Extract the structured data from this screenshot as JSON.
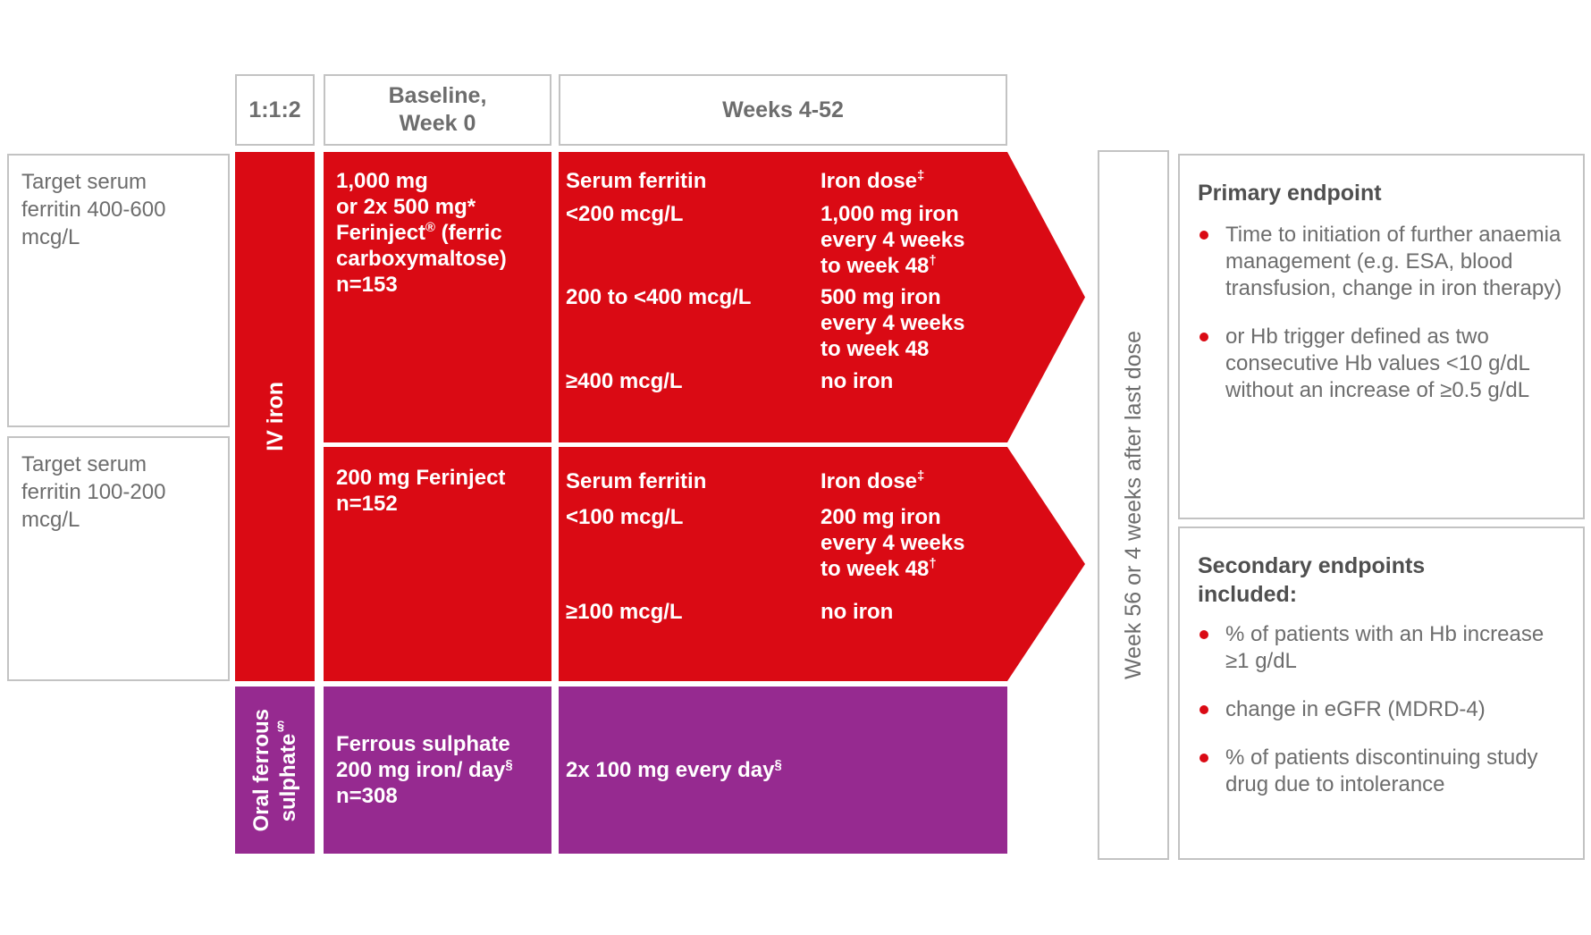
{
  "colors": {
    "red": "#da0a14",
    "purple": "#962a90",
    "border": "#c3c3c3",
    "gray": "#6d6d6d",
    "dark": "#4f4f4f",
    "white": "#ffffff"
  },
  "header": {
    "ratio": "1:1:2",
    "baseline": [
      "Baseline,",
      "Week 0"
    ],
    "weeks": "Weeks 4-52"
  },
  "left_labels": {
    "row1": [
      "Target serum",
      "ferritin 400-600",
      "mcg/L"
    ],
    "row2": [
      "Target serum",
      "ferritin 100-200",
      "mcg/L"
    ]
  },
  "iv_iron_label": "IV iron",
  "oral_bar_label": [
    "Oral ferrous",
    "sulphate§"
  ],
  "row1": {
    "baseline": [
      "1,000 mg",
      "or 2x 500 mg*",
      "Ferinject® (ferric",
      "carboxymaltose)",
      "n=153"
    ],
    "ferritin_header": "Serum ferritin",
    "dose_header": "Iron dose‡",
    "entries": [
      {
        "ferritin": "<200 mcg/L",
        "dose": [
          "1,000 mg iron",
          "every 4 weeks",
          "to week 48†"
        ]
      },
      {
        "ferritin": "200 to <400 mcg/L",
        "dose": [
          "500 mg iron",
          "every 4 weeks",
          "to week 48"
        ]
      },
      {
        "ferritin": "≥400 mcg/L",
        "dose": [
          "no iron"
        ]
      }
    ]
  },
  "row2": {
    "baseline": [
      "200 mg Ferinject",
      "n=152"
    ],
    "ferritin_header": "Serum ferritin",
    "dose_header": "Iron dose‡",
    "entries": [
      {
        "ferritin": "<100 mcg/L",
        "dose": [
          "200 mg iron",
          "every 4 weeks",
          "to week 48†"
        ]
      },
      {
        "ferritin": "≥100 mcg/L",
        "dose": [
          "no iron"
        ]
      }
    ]
  },
  "row3": {
    "baseline": [
      "Ferrous sulphate",
      "200 mg iron/ day§",
      "n=308"
    ],
    "weeks": "2x 100 mg every day§"
  },
  "week56_label": "Week 56 or 4 weeks after last dose",
  "primary": {
    "title": "Primary endpoint",
    "bullets": [
      "Time to initiation of further anaemia management (e.g. ESA, blood transfusion, change in iron therapy)",
      "or Hb trigger defined as two consecutive Hb values <10 g/dL without an increase of ≥0.5 g/dL"
    ]
  },
  "secondary": {
    "title": [
      "Secondary endpoints",
      "included:"
    ],
    "bullets": [
      "% of patients with an Hb increase ≥1 g/dL",
      "change in eGFR (MDRD-4)",
      "% of patients discontinuing study drug due to intolerance"
    ]
  }
}
